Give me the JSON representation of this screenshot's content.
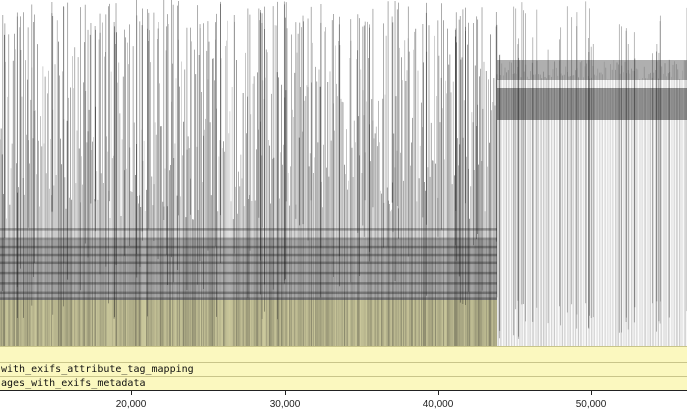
{
  "lanes": [
    {
      "label": "with_exifs_attribute_tag_mapping"
    },
    {
      "label": "ages_with_exifs_metadata"
    }
  ],
  "axis": {
    "ticks": [
      {
        "value": 20000,
        "label": "20,000"
      },
      {
        "value": 30000,
        "label": "30,000"
      },
      {
        "value": 40000,
        "label": "40,000"
      },
      {
        "value": 50000,
        "label": "50,000"
      }
    ]
  },
  "colors": {
    "lane_fill": "#fbf8bf",
    "trace_ink": "#1a1a1a",
    "background": "#ffffff"
  }
}
